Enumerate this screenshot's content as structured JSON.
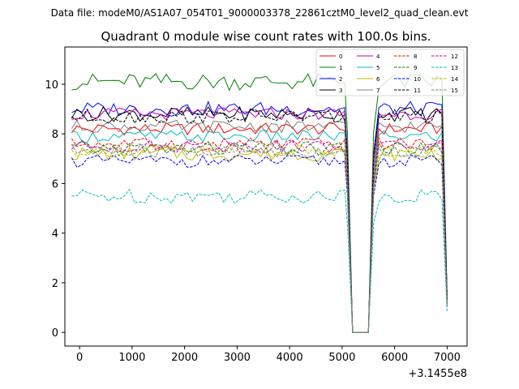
{
  "suptitle": "Data file: modeM0/AS1A07_054T01_9000003378_22861cztM0_level2_quad_clean.evt",
  "chart_data": {
    "type": "line",
    "title": "Quadrant 0 module wise count rates with 100.0s bins.",
    "xlabel": "",
    "ylabel": "",
    "x_offset_label": "+3.1455e8",
    "xlim": [
      -280,
      7380
    ],
    "ylim": [
      -0.55,
      11.5
    ],
    "xticks": [
      0,
      1000,
      2000,
      3000,
      4000,
      5000,
      6000,
      7000
    ],
    "yticks": [
      0,
      2,
      4,
      6,
      8,
      10
    ],
    "legend_position": "top-right",
    "bins": {
      "x_start": -150,
      "x_end": 5050,
      "step": 100
    },
    "gap": {
      "x": [
        5100,
        5200,
        5300,
        5400,
        5500,
        5600
      ],
      "y_frac": [
        0.8,
        0.0,
        0.0,
        0.0,
        0.0,
        0.8
      ]
    },
    "second_segment": {
      "x_start": 5700,
      "x_end": 6900,
      "step": 100
    },
    "end_point": {
      "x": 7000,
      "value_frac": 0.15
    },
    "series": [
      {
        "name": "0",
        "color": "#ff0000",
        "dash": "solid",
        "mean": 8.2,
        "amp": 0.25
      },
      {
        "name": "1",
        "color": "#008000",
        "dash": "solid",
        "mean": 10.1,
        "amp": 0.35
      },
      {
        "name": "2",
        "color": "#0000ff",
        "dash": "solid",
        "mean": 9.0,
        "amp": 0.3
      },
      {
        "name": "3",
        "color": "#000000",
        "dash": "solid",
        "mean": 8.8,
        "amp": 0.3
      },
      {
        "name": "4",
        "color": "#bf00bf",
        "dash": "solid",
        "mean": 8.8,
        "amp": 0.25
      },
      {
        "name": "5",
        "color": "#00bfbf",
        "dash": "solid",
        "mean": 7.9,
        "amp": 0.25
      },
      {
        "name": "6",
        "color": "#bfbf00",
        "dash": "solid",
        "mean": 7.2,
        "amp": 0.3
      },
      {
        "name": "7",
        "color": "#808080",
        "dash": "solid",
        "mean": 8.3,
        "amp": 0.25
      },
      {
        "name": "8",
        "color": "#ff0000",
        "dash": "dashed",
        "mean": 7.6,
        "amp": 0.25
      },
      {
        "name": "9",
        "color": "#008000",
        "dash": "dashed",
        "mean": 7.4,
        "amp": 0.3
      },
      {
        "name": "10",
        "color": "#0000ff",
        "dash": "dashed",
        "mean": 6.9,
        "amp": 0.25
      },
      {
        "name": "11",
        "color": "#000000",
        "dash": "dashed",
        "mean": 8.7,
        "amp": 0.3
      },
      {
        "name": "12",
        "color": "#bf00bf",
        "dash": "dashed",
        "mean": 7.5,
        "amp": 0.25
      },
      {
        "name": "13",
        "color": "#00bfbf",
        "dash": "dashed",
        "mean": 5.5,
        "amp": 0.3
      },
      {
        "name": "14",
        "color": "#bfbf00",
        "dash": "dashed",
        "mean": 7.3,
        "amp": 0.25
      },
      {
        "name": "15",
        "color": "#808080",
        "dash": "dashed",
        "mean": 7.3,
        "amp": 0.3
      }
    ]
  }
}
